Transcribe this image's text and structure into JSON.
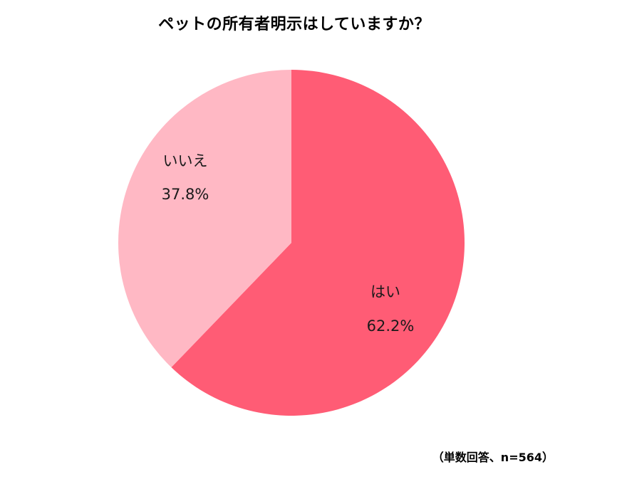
{
  "chart_data": {
    "type": "pie",
    "title": "ペットの所有者明示はしていますか？",
    "note": "（単数回答、n=564）",
    "slices": [
      {
        "label": "はい",
        "value": 62.2,
        "value_label": "62.2%",
        "color": "#ff5c75"
      },
      {
        "label": "いいえ",
        "value": 37.8,
        "value_label": "37.8%",
        "color": "#ffb8c4"
      }
    ],
    "start_angle": "12 o'clock",
    "direction": "clockwise",
    "legend": "none"
  }
}
